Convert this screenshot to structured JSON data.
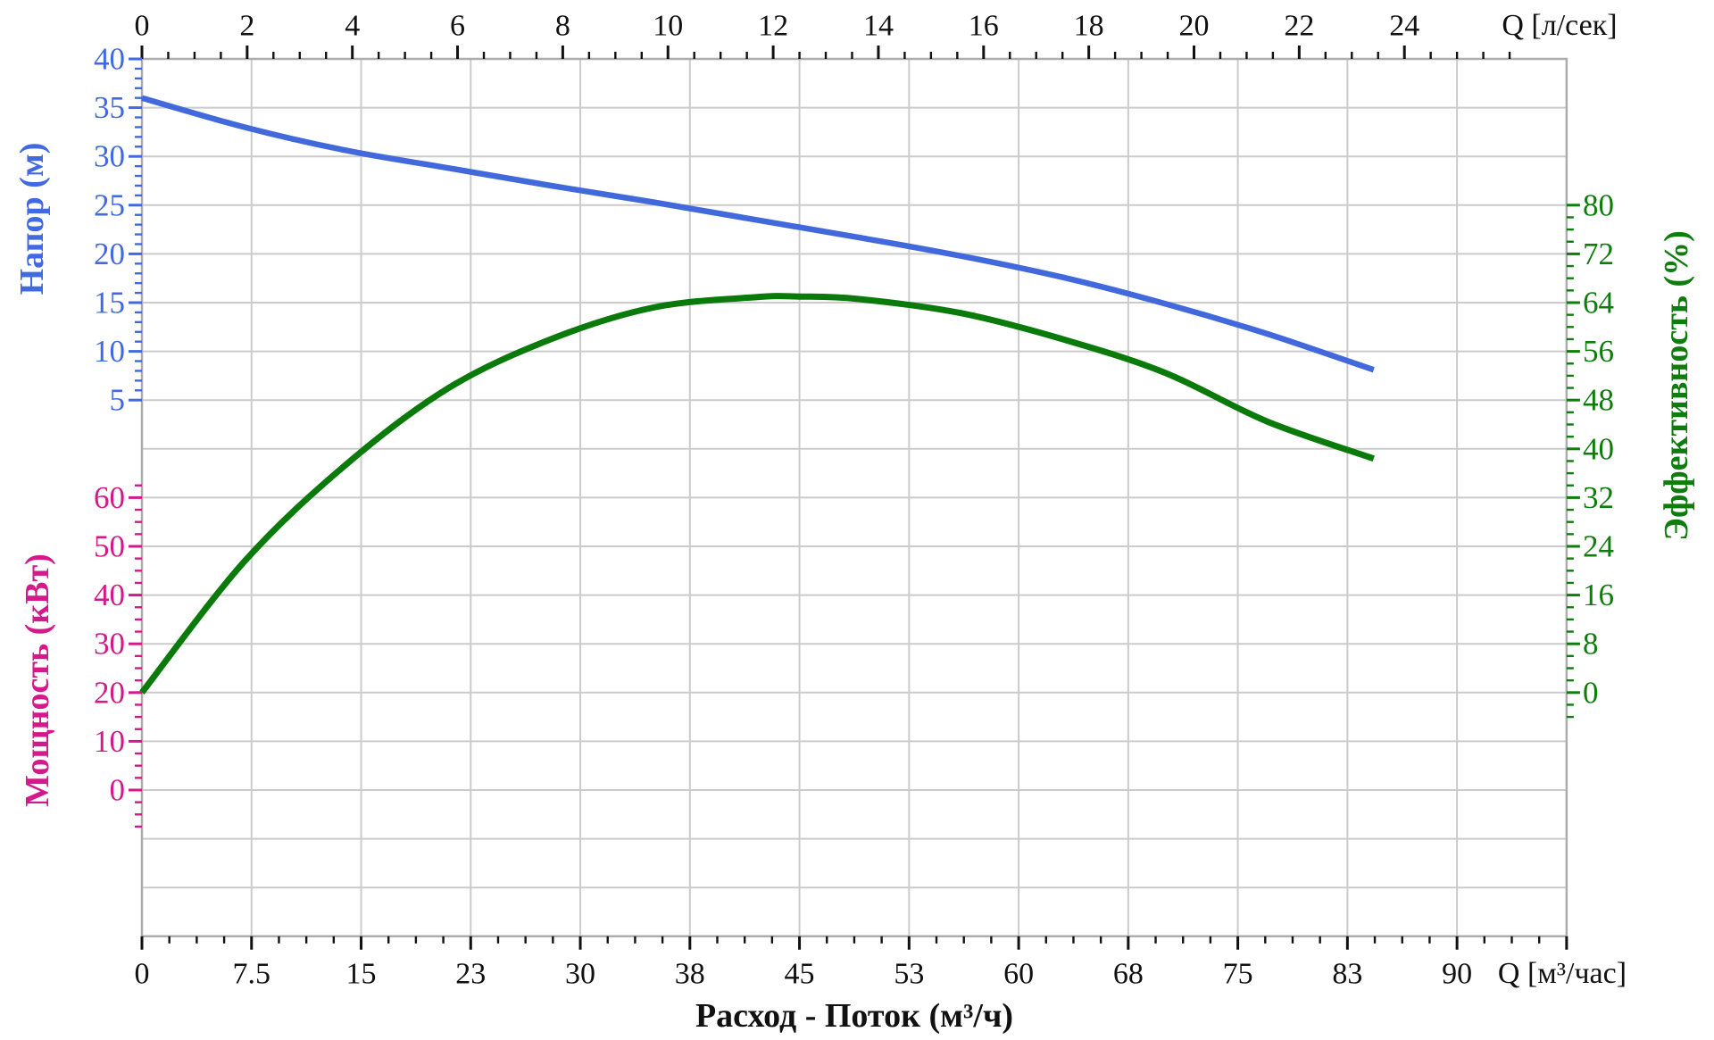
{
  "chart_data": {
    "type": "line",
    "title": "Расход - Поток (м³/ч)",
    "background": "#FFFFFF",
    "grid": true,
    "x_axis_top": {
      "unit": "Q [л/сек]",
      "major_ticks": [
        0,
        2,
        4,
        6,
        8,
        10,
        12,
        14,
        16,
        18,
        20,
        22,
        24
      ],
      "minor_step": 0.5,
      "minor_max": 26,
      "range": [
        0,
        27.08
      ]
    },
    "x_axis_bottom": {
      "unit": "Q [м³/час]",
      "tick_labels": [
        "0",
        "7.5",
        "15",
        "23",
        "30",
        "38",
        "45",
        "53",
        "60",
        "68",
        "75",
        "83",
        "90"
      ],
      "tick_values": [
        0,
        7.5,
        15,
        22.5,
        30,
        37.5,
        45,
        52.5,
        60,
        67.5,
        75,
        82.5,
        90
      ],
      "major_step": 7.5,
      "minor_step": 1.875,
      "range": [
        0,
        97.5
      ]
    },
    "y_axes": {
      "y_head": {
        "title": "Напор (м)",
        "color": "#4169E1",
        "major_ticks": [
          40,
          35,
          30,
          25,
          20,
          15,
          10,
          5
        ],
        "minor_step": 1,
        "minor_range": [
          5,
          40
        ]
      },
      "y_power": {
        "title": "Мощность (кВт)",
        "color": "#D4198A",
        "major_ticks": [
          60,
          50,
          40,
          30,
          20,
          10,
          0
        ],
        "minor_step": 2.5,
        "minor_range": [
          -7.5,
          62.5
        ]
      },
      "y_eff": {
        "title": "Эффективность (%)",
        "color": "#0E7D0E",
        "major_ticks": [
          80,
          72,
          64,
          56,
          48,
          40,
          32,
          24,
          16,
          8,
          0
        ],
        "minor_step": 2,
        "minor_range": [
          -4,
          80
        ]
      }
    },
    "series": [
      {
        "name": "Напор",
        "key": "head-curve",
        "axis": "y_head",
        "color": "#4169DC",
        "stroke_width": 6.5,
        "points": [
          [
            0,
            36.0
          ],
          [
            7,
            33.0
          ],
          [
            14,
            30.6
          ],
          [
            21,
            28.8
          ],
          [
            28,
            27.0
          ],
          [
            35,
            25.3
          ],
          [
            42,
            23.5
          ],
          [
            49,
            21.7
          ],
          [
            56,
            19.8
          ],
          [
            63,
            17.6
          ],
          [
            70,
            14.9
          ],
          [
            77,
            11.8
          ],
          [
            84.3,
            8.1
          ]
        ]
      },
      {
        "name": "Эффективность",
        "key": "efficiency-curve",
        "axis": "y_eff",
        "color": "#0A7A0A",
        "stroke_width": 7,
        "points": [
          [
            0,
            0
          ],
          [
            7,
            21.5
          ],
          [
            14,
            37.5
          ],
          [
            21,
            50.0
          ],
          [
            28,
            58.0
          ],
          [
            35,
            63.2
          ],
          [
            42,
            64.9
          ],
          [
            45,
            65.0
          ],
          [
            49,
            64.6
          ],
          [
            56,
            62.3
          ],
          [
            63,
            58.0
          ],
          [
            70,
            52.5
          ],
          [
            77,
            44.5
          ],
          [
            84.3,
            38.4
          ]
        ]
      }
    ],
    "style": {
      "grid_color": "#CBCBCB",
      "border_color": "#ADADAD",
      "tick_color_x": "#111111"
    }
  }
}
